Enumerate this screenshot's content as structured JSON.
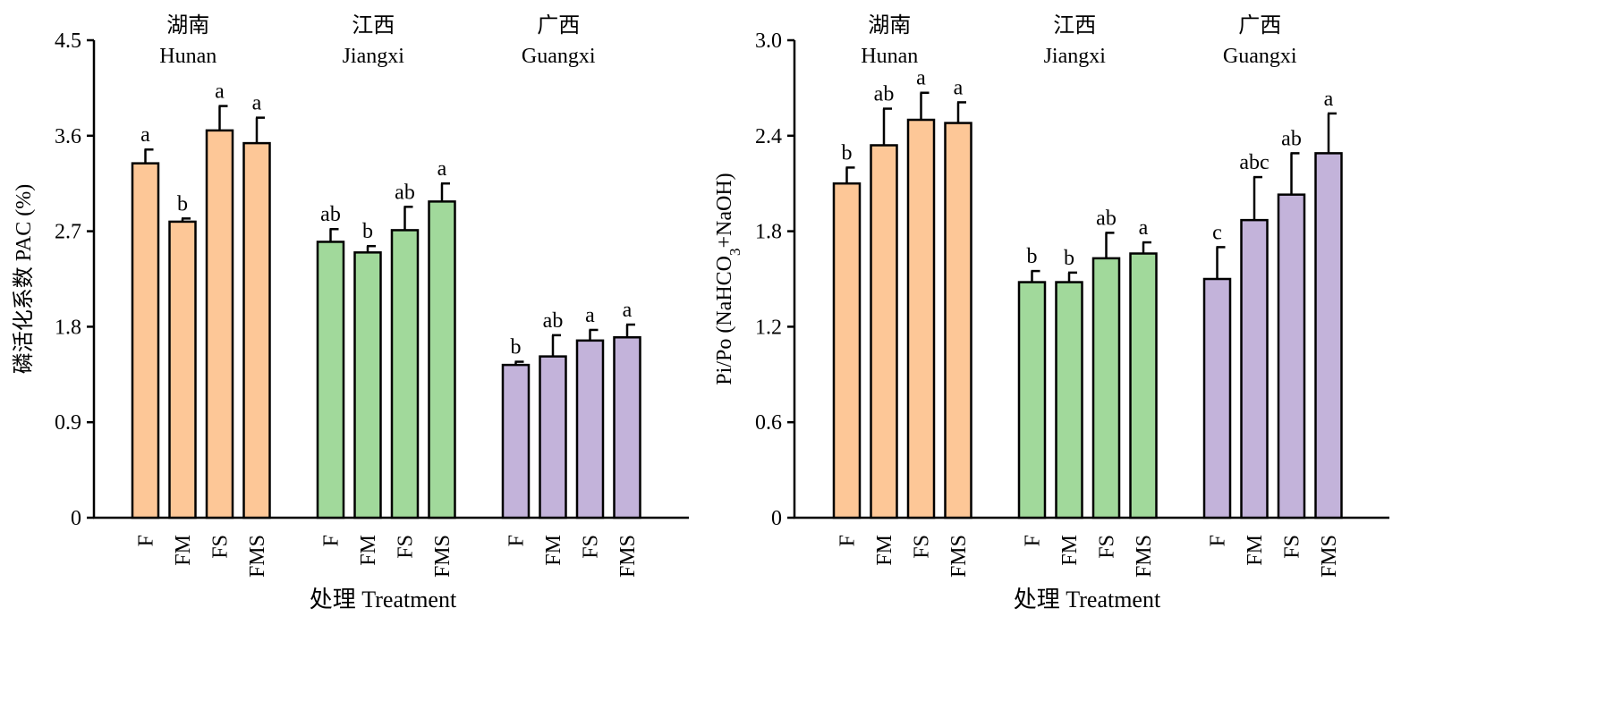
{
  "chart_data": [
    {
      "type": "bar",
      "ylabel": "磷活化系数 PAC (%)",
      "xlabel": "处理 Treatment",
      "ylim": [
        0,
        4.5
      ],
      "yticks": [
        "0",
        "0.9",
        "1.8",
        "2.7",
        "3.6",
        "4.5"
      ],
      "groups": [
        {
          "cn": "湖南",
          "en": "Hunan",
          "color": "#FDC797",
          "bars": [
            {
              "cat": "F",
              "value": 3.34,
              "err": 0.13,
              "letter": "a"
            },
            {
              "cat": "FM",
              "value": 2.79,
              "err": 0.03,
              "letter": "b"
            },
            {
              "cat": "FS",
              "value": 3.65,
              "err": 0.23,
              "letter": "a"
            },
            {
              "cat": "FMS",
              "value": 3.53,
              "err": 0.24,
              "letter": "a"
            }
          ]
        },
        {
          "cn": "江西",
          "en": "Jiangxi",
          "color": "#A1D99B",
          "bars": [
            {
              "cat": "F",
              "value": 2.6,
              "err": 0.12,
              "letter": "ab"
            },
            {
              "cat": "FM",
              "value": 2.5,
              "err": 0.06,
              "letter": "b"
            },
            {
              "cat": "FS",
              "value": 2.71,
              "err": 0.22,
              "letter": "ab"
            },
            {
              "cat": "FMS",
              "value": 2.98,
              "err": 0.17,
              "letter": "a"
            }
          ]
        },
        {
          "cn": "广西",
          "en": "Guangxi",
          "color": "#C3B3DA",
          "bars": [
            {
              "cat": "F",
              "value": 1.44,
              "err": 0.03,
              "letter": "b"
            },
            {
              "cat": "FM",
              "value": 1.52,
              "err": 0.2,
              "letter": "ab"
            },
            {
              "cat": "FS",
              "value": 1.67,
              "err": 0.1,
              "letter": "a"
            },
            {
              "cat": "FMS",
              "value": 1.7,
              "err": 0.12,
              "letter": "a"
            }
          ]
        }
      ]
    },
    {
      "type": "bar",
      "ylabel_parts": {
        "pre": "Pi/Po (NaHCO",
        "sub": "3",
        "post": "+NaOH)"
      },
      "xlabel": "处理 Treatment",
      "ylim": [
        0,
        3.0
      ],
      "yticks": [
        "0",
        "0.6",
        "1.2",
        "1.8",
        "2.4",
        "3.0"
      ],
      "groups": [
        {
          "cn": "湖南",
          "en": "Hunan",
          "color": "#FDC797",
          "bars": [
            {
              "cat": "F",
              "value": 2.1,
              "err": 0.1,
              "letter": "b"
            },
            {
              "cat": "FM",
              "value": 2.34,
              "err": 0.23,
              "letter": "ab"
            },
            {
              "cat": "FS",
              "value": 2.5,
              "err": 0.17,
              "letter": "a"
            },
            {
              "cat": "FMS",
              "value": 2.48,
              "err": 0.13,
              "letter": "a"
            }
          ]
        },
        {
          "cn": "江西",
          "en": "Jiangxi",
          "color": "#A1D99B",
          "bars": [
            {
              "cat": "F",
              "value": 1.48,
              "err": 0.07,
              "letter": "b"
            },
            {
              "cat": "FM",
              "value": 1.48,
              "err": 0.06,
              "letter": "b"
            },
            {
              "cat": "FS",
              "value": 1.63,
              "err": 0.16,
              "letter": "ab"
            },
            {
              "cat": "FMS",
              "value": 1.66,
              "err": 0.07,
              "letter": "a"
            }
          ]
        },
        {
          "cn": "广西",
          "en": "Guangxi",
          "color": "#C3B3DA",
          "bars": [
            {
              "cat": "F",
              "value": 1.5,
              "err": 0.2,
              "letter": "c"
            },
            {
              "cat": "FM",
              "value": 1.87,
              "err": 0.27,
              "letter": "abc"
            },
            {
              "cat": "FS",
              "value": 2.03,
              "err": 0.26,
              "letter": "ab"
            },
            {
              "cat": "FMS",
              "value": 2.29,
              "err": 0.25,
              "letter": "a"
            }
          ]
        }
      ]
    }
  ]
}
